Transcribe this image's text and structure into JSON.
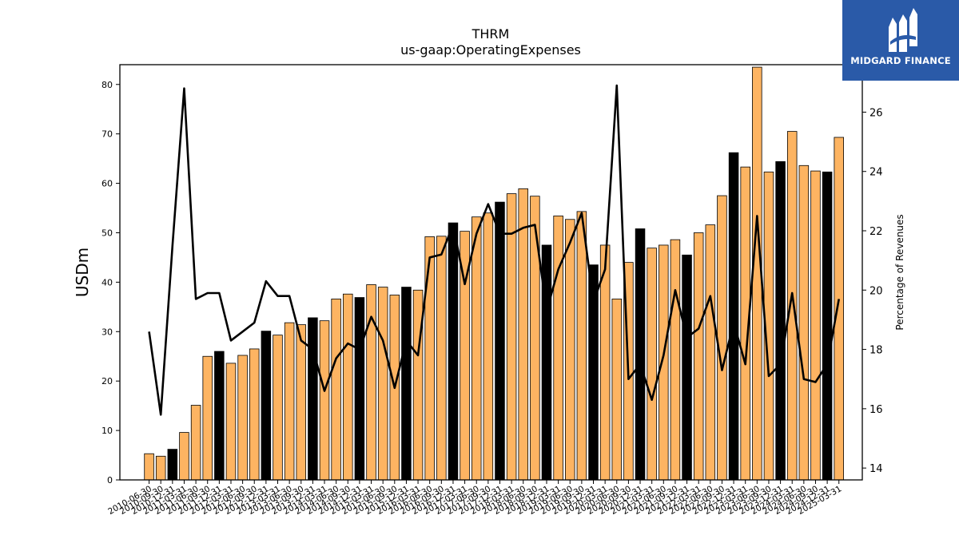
{
  "chart_data": {
    "type": "bar",
    "title": "THRM",
    "subtitle": "us-gaap:OperatingExpenses",
    "ylabel": "USDm",
    "y2label": "Percentage of Revenues",
    "ylim": [
      0,
      84
    ],
    "y2lim": [
      13.6,
      27.6
    ],
    "yticks": [
      0,
      10,
      20,
      30,
      40,
      50,
      60,
      70,
      80
    ],
    "y2ticks": [
      14,
      16,
      18,
      20,
      22,
      24,
      26
    ],
    "categories": [
      "2010-06-30",
      "2010-09-30",
      "2010-12-31",
      "2011-03-31",
      "2011-06-30",
      "2011-09-30",
      "2011-12-31",
      "2012-03-31",
      "2012-06-30",
      "2012-09-30",
      "2012-12-31",
      "2013-03-31",
      "2013-06-30",
      "2013-09-30",
      "2013-12-31",
      "2014-03-31",
      "2014-06-30",
      "2014-09-30",
      "2014-12-31",
      "2015-03-31",
      "2015-06-30",
      "2015-09-30",
      "2015-12-31",
      "2016-03-31",
      "2016-06-30",
      "2016-09-30",
      "2016-12-31",
      "2017-03-31",
      "2017-06-30",
      "2017-09-30",
      "2017-12-31",
      "2018-03-31",
      "2018-06-30",
      "2018-09-30",
      "2018-12-31",
      "2019-03-31",
      "2019-06-30",
      "2019-09-30",
      "2019-12-31",
      "2020-03-31",
      "2020-06-30",
      "2020-09-30",
      "2020-12-31",
      "2021-03-31",
      "2021-06-30",
      "2021-09-30",
      "2021-12-31",
      "2022-03-31",
      "2022-06-30",
      "2022-09-30",
      "2022-12-31",
      "2023-03-31",
      "2023-06-30",
      "2023-09-30",
      "2023-12-31",
      "2024-03-31",
      "2024-06-30",
      "2024-09-30",
      "2024-12-31",
      "2025-03-31"
    ],
    "series": [
      {
        "type": "bar",
        "values": [
          5.3,
          4.8,
          6.2,
          9.6,
          15.1,
          25.0,
          26.0,
          23.6,
          25.2,
          26.5,
          30.1,
          29.3,
          31.8,
          31.4,
          32.8,
          32.2,
          36.6,
          37.6,
          36.9,
          39.5,
          39.0,
          37.4,
          39.0,
          38.4,
          49.2,
          49.3,
          52.0,
          50.3,
          53.2,
          54.0,
          56.2,
          57.9,
          58.9,
          57.4,
          47.5,
          53.4,
          52.7,
          54.3,
          43.5,
          47.5,
          36.6,
          44.0,
          50.8,
          46.9,
          47.5,
          48.6,
          45.5,
          50.0,
          51.6,
          57.5,
          66.2,
          63.3,
          83.5,
          62.3,
          64.4,
          70.5,
          63.6,
          62.5,
          62.3,
          69.3
        ],
        "highlight": [
          false,
          false,
          true,
          false,
          false,
          false,
          true,
          false,
          false,
          false,
          true,
          false,
          false,
          false,
          true,
          false,
          false,
          false,
          true,
          false,
          false,
          false,
          true,
          false,
          false,
          false,
          true,
          false,
          false,
          false,
          true,
          false,
          false,
          false,
          true,
          false,
          false,
          false,
          true,
          false,
          false,
          false,
          true,
          false,
          false,
          false,
          true,
          false,
          false,
          false,
          true,
          false,
          false,
          false,
          true,
          false,
          false,
          false,
          true,
          false
        ],
        "color": "#fdb462",
        "highlight_color": "#000000"
      },
      {
        "type": "line",
        "axis": "right",
        "color": "#000000",
        "values": [
          18.6,
          15.8,
          21.5,
          26.8,
          19.7,
          19.9,
          19.9,
          18.3,
          18.6,
          18.9,
          20.3,
          19.8,
          19.8,
          18.3,
          18.0,
          16.6,
          17.7,
          18.2,
          18.0,
          19.1,
          18.3,
          16.7,
          18.3,
          17.8,
          21.1,
          21.2,
          22.2,
          20.2,
          21.9,
          22.9,
          21.9,
          21.9,
          22.1,
          22.2,
          19.3,
          20.7,
          21.6,
          22.6,
          19.6,
          20.7,
          26.9,
          17.0,
          17.5,
          16.3,
          17.8,
          20.0,
          18.4,
          18.7,
          19.8,
          17.3,
          18.9,
          17.5,
          22.5,
          17.1,
          17.5,
          19.9,
          17.0,
          16.9,
          17.5,
          19.7
        ]
      }
    ],
    "grid": false,
    "colors": {
      "bar": "#fdb462",
      "bar_highlight": "#000000",
      "line": "#000000"
    }
  },
  "logo": {
    "text": "MIDGARD FINANCE",
    "color": "#2a5aa8",
    "icon": "midgard-logo-icon"
  }
}
